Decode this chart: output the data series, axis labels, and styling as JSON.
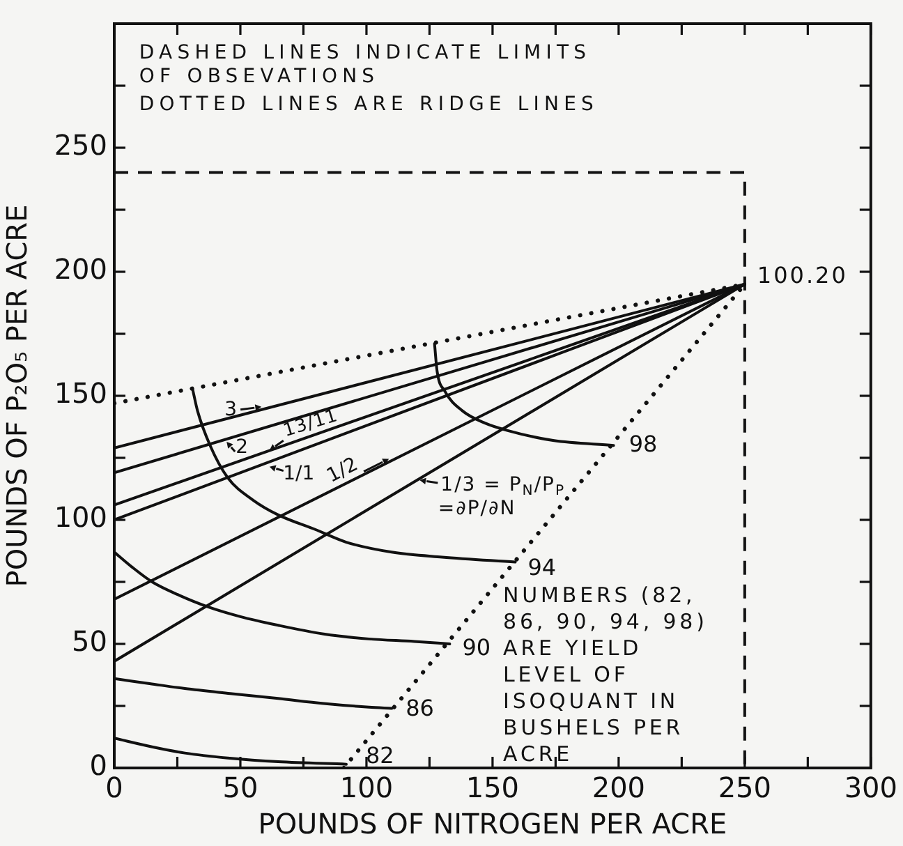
{
  "chart_data": {
    "type": "line",
    "xlabel": "POUNDS OF NITROGEN PER ACRE",
    "ylabel": "POUNDS OF P₂O₅ PER ACRE",
    "xlim": [
      0,
      300
    ],
    "ylim": [
      0,
      300
    ],
    "xticks": [
      0,
      {
        "value": 25,
        "label": null
      },
      50,
      {
        "value": 75,
        "label": null
      },
      100,
      {
        "value": 125,
        "label": null
      },
      150,
      {
        "value": 175,
        "label": null
      },
      200,
      {
        "value": 225,
        "label": null
      },
      250,
      {
        "value": 275,
        "label": null
      },
      300
    ],
    "yticks": [
      0,
      {
        "value": 25,
        "label": null
      },
      50,
      {
        "value": 75,
        "label": null
      },
      100,
      {
        "value": 125,
        "label": null
      },
      150,
      {
        "value": 175,
        "label": null
      },
      200,
      {
        "value": 225,
        "label": null
      },
      250,
      {
        "value": 275,
        "label": null
      }
    ],
    "marker": "none",
    "line_style": "solid",
    "series": [
      {
        "name": "82",
        "color": "#111111",
        "x": [
          0,
          15,
          28,
          45,
          65,
          92
        ],
        "values": [
          12,
          8.5,
          6,
          4,
          2.5,
          1.5
        ]
      },
      {
        "name": "86",
        "color": "#111111",
        "x": [
          0,
          14,
          28,
          46,
          65,
          83,
          101,
          110
        ],
        "values": [
          36,
          34,
          32,
          30,
          28,
          26,
          24.5,
          24
        ]
      },
      {
        "name": "90",
        "color": "#111111",
        "x": [
          0,
          7,
          15,
          26,
          37,
          50,
          65,
          83,
          101,
          119,
          133
        ],
        "values": [
          87,
          81,
          75,
          69.5,
          65,
          61,
          57.5,
          54,
          52,
          51,
          50
        ]
      },
      {
        "name": "94",
        "color": "#111111",
        "x": [
          31,
          33,
          38,
          45,
          55,
          65,
          80,
          92,
          110,
          130,
          159
        ],
        "values": [
          153,
          144,
          130,
          117,
          108,
          102,
          96,
          91,
          87,
          85,
          83
        ]
      },
      {
        "name": "98",
        "color": "#111111",
        "x": [
          127,
          128,
          131,
          138,
          147,
          156,
          174,
          198
        ],
        "values": [
          171,
          160,
          152,
          144,
          139,
          136,
          132,
          130
        ]
      },
      {
        "color": "#111111",
        "x": [
          0,
          250
        ],
        "values": [
          129,
          195
        ]
      },
      {
        "color": "#111111",
        "x": [
          0,
          250
        ],
        "values": [
          119,
          195
        ]
      },
      {
        "color": "#111111",
        "x": [
          0,
          250
        ],
        "values": [
          106,
          195
        ]
      },
      {
        "color": "#111111",
        "x": [
          0,
          250
        ],
        "values": [
          100,
          195
        ]
      },
      {
        "color": "#111111",
        "x": [
          0,
          250
        ],
        "values": [
          68,
          195
        ]
      },
      {
        "color": "#111111",
        "x": [
          0,
          250
        ],
        "values": [
          43,
          195
        ]
      },
      {
        "color": "#111111",
        "line_style": "dotted",
        "x": [
          0,
          250
        ],
        "values": [
          147,
          195
        ]
      },
      {
        "color": "#111111",
        "line_style": "dotted",
        "x": [
          91,
          250
        ],
        "values": [
          0,
          195
        ]
      },
      {
        "color": "#111111",
        "line_style": "dashed",
        "x": [
          0,
          250,
          250
        ],
        "values": [
          240,
          240,
          0
        ]
      }
    ],
    "annotations": [
      "DASHED LINES INDICATE LIMITS\nOF OBSEVATIONS",
      "DOTTED LINES ARE RIDGE LINES",
      {
        "text": "100.20",
        "x": 250,
        "y": 195
      },
      {
        "text": "3",
        "x": 60,
        "y": 145
      },
      {
        "text": "2",
        "x": 44,
        "y": 132
      },
      {
        "text": "13/11",
        "x": 61,
        "y": 128
      },
      {
        "text": "1/1",
        "x": 61,
        "y": 122
      },
      {
        "text": "1/2",
        "x": 110,
        "y": 124
      },
      {
        "text": "1/3 = P$_{N}$/P$_{P}$",
        "x": 120,
        "y": 116
      },
      "=∂P/∂N",
      "NUMBERS (82,\n86, 90, 94, 98)\nARE YIELD\nLEVEL OF\nISOQUANT IN\nBUSHELS PER\nACRE"
    ]
  }
}
